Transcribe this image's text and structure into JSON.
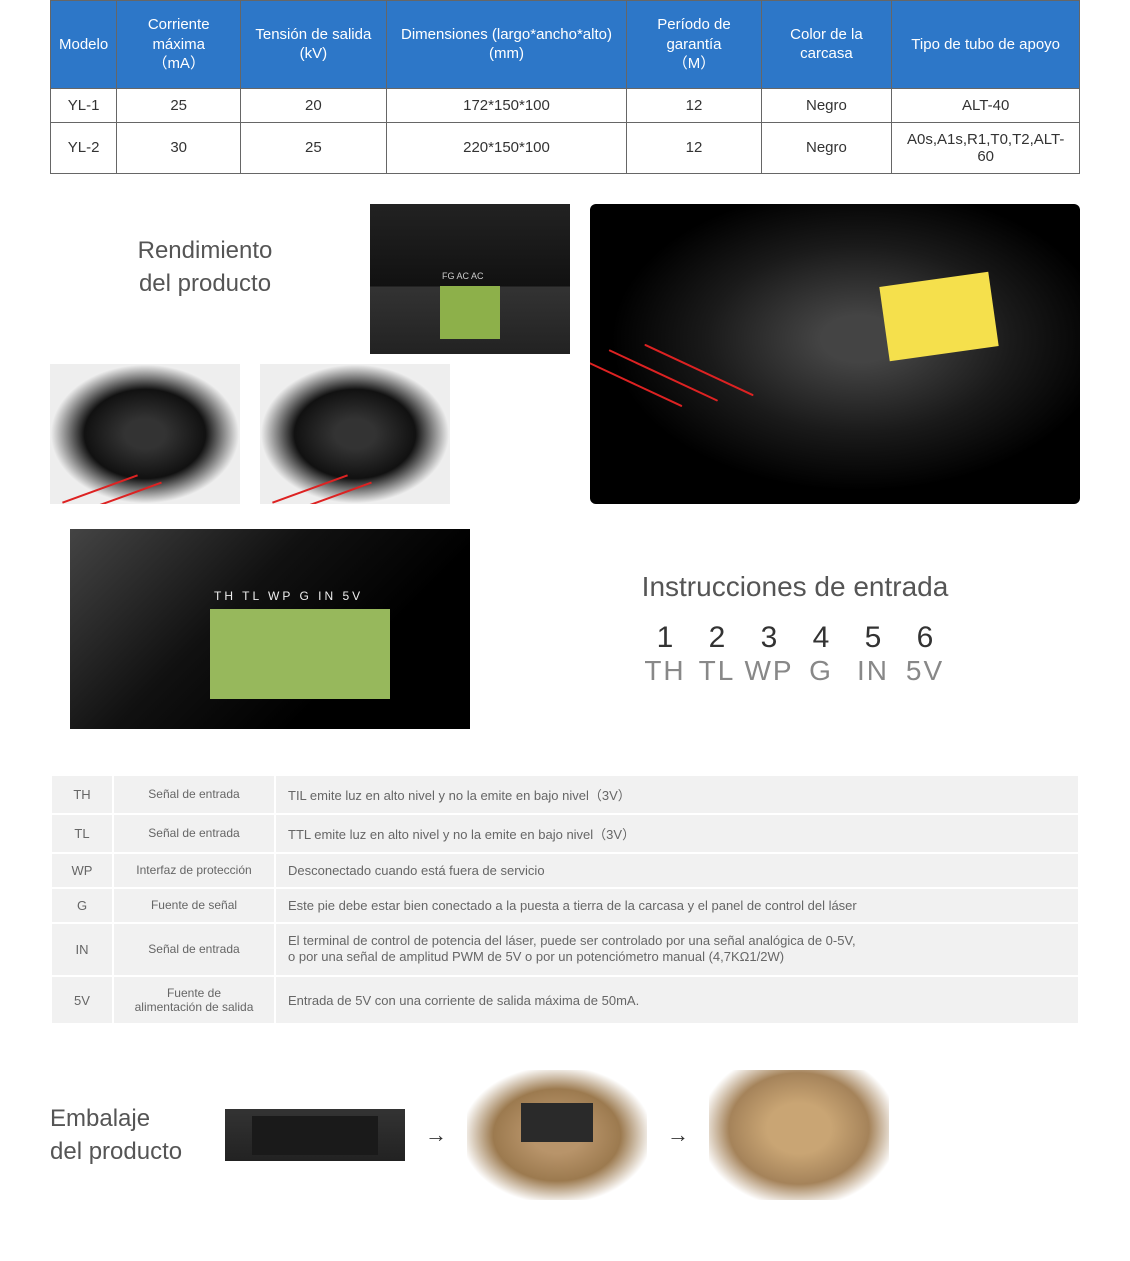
{
  "spec_table": {
    "header_bg": "#2d77c8",
    "columns": [
      "Modelo",
      "Corriente máxima\n（mA）",
      "Tensión de salida (kV)",
      "Dimensiones (largo*ancho*alto) (mm)",
      "Período de garantía\n（M）",
      "Color de la carcasa",
      "Tipo de tubo de apoyo"
    ],
    "rows": [
      [
        "YL-1",
        "25",
        "20",
        "172*150*100",
        "12",
        "Negro",
        "ALT-40"
      ],
      [
        "YL-2",
        "30",
        "25",
        "220*150*100",
        "12",
        "Negro",
        "A0s,A1s,R1,T0,T2,ALT-60"
      ]
    ]
  },
  "performance": {
    "title_line1": "Rendimiento",
    "title_line2": "del producto",
    "connector_label": "FG AC AC"
  },
  "instructions": {
    "title": "Instrucciones de entrada",
    "terminal_text": "TH TL WP G IN 5V",
    "numbers": [
      "1",
      "2",
      "3",
      "4",
      "5",
      "6"
    ],
    "pins": [
      "TH",
      "TL",
      "WP",
      "G",
      "IN",
      "5V"
    ]
  },
  "signal_table": {
    "rows": [
      {
        "pin": "TH",
        "type": "Señal de entrada",
        "desc": "TIL emite luz en alto nivel y no la emite en bajo nivel（3V）"
      },
      {
        "pin": "TL",
        "type": "Señal de entrada",
        "desc": "TTL emite luz en alto nivel y no la emite en bajo nivel（3V）"
      },
      {
        "pin": "WP",
        "type": "Interfaz de protección",
        "desc": "Desconectado cuando está fuera de servicio"
      },
      {
        "pin": "G",
        "type": "Fuente de señal",
        "desc": "Este pie debe estar bien conectado a la puesta a tierra de la carcasa y el panel de control del láser"
      },
      {
        "pin": "IN",
        "type": "Señal de entrada",
        "desc": "El terminal de control de potencia del láser, puede ser controlado por una señal analógica de 0-5V,\no por una señal de amplitud PWM de 5V o por un potenciómetro manual (4,7KΩ1/2W)"
      },
      {
        "pin": "5V",
        "type": "Fuente de\nalimentación de salida",
        "desc": "Entrada de 5V con una corriente de salida máxima de 50mA."
      }
    ]
  },
  "packaging": {
    "title_line1": "Embalaje",
    "title_line2": "del producto",
    "arrow": "→"
  }
}
